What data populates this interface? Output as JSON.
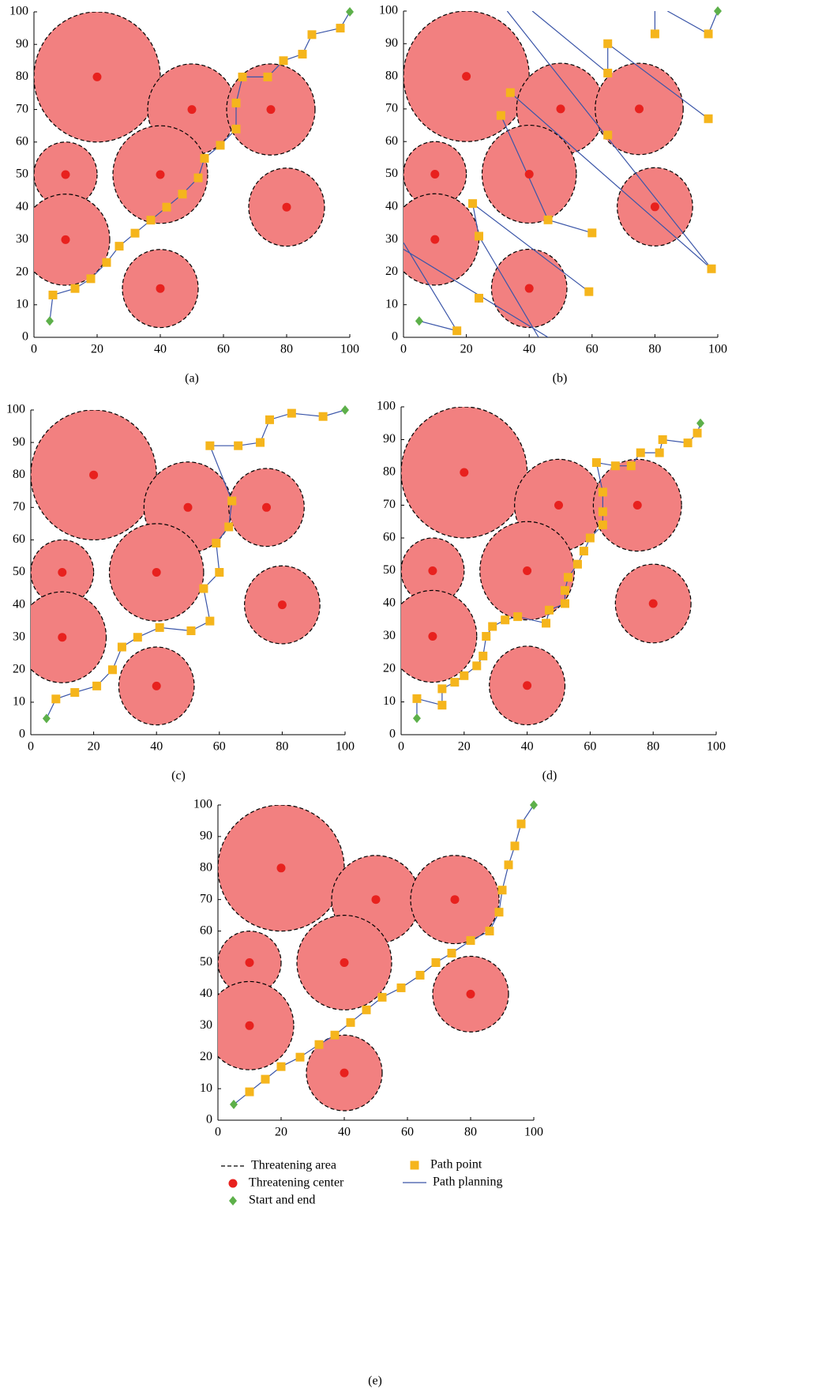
{
  "chart_data": [
    {
      "type": "scatter",
      "title": "(a)",
      "xlim": [
        0,
        100
      ],
      "ylim": [
        0,
        100
      ],
      "xticks": [
        0,
        20,
        40,
        60,
        80,
        100
      ],
      "yticks": [
        0,
        10,
        20,
        30,
        40,
        50,
        60,
        70,
        80,
        90,
        100
      ],
      "series": [
        {
          "marker": "area",
          "color": "#f28080",
          "edgecolor": "#000000",
          "x": [
            20,
            50,
            75,
            10,
            40,
            10,
            80,
            40
          ],
          "y": [
            80,
            70,
            70,
            50,
            50,
            30,
            40,
            15
          ],
          "r": [
            20,
            14,
            14,
            10,
            15,
            14,
            12,
            12
          ]
        },
        {
          "marker": "dot",
          "color": "#e8211e",
          "x": [
            20,
            50,
            75,
            10,
            40,
            10,
            80,
            40
          ],
          "y": [
            80,
            70,
            70,
            50,
            50,
            30,
            40,
            15
          ]
        },
        {
          "marker": "diamond",
          "color": "#5db04a",
          "x": [
            5,
            100
          ],
          "y": [
            5,
            100
          ]
        },
        {
          "marker": "square",
          "color": "#f5b51c",
          "x": [
            6,
            13,
            18,
            23,
            27,
            32,
            37,
            42,
            47,
            52,
            54,
            59,
            64,
            64,
            66,
            74,
            79,
            85,
            88,
            97
          ],
          "y": [
            13,
            15,
            18,
            23,
            28,
            32,
            36,
            40,
            44,
            49,
            55,
            59,
            64,
            72,
            80,
            80,
            85,
            87,
            93,
            95
          ]
        },
        {
          "marker": "line",
          "color": "#3a55a8",
          "x": [
            5,
            6,
            13,
            18,
            23,
            27,
            32,
            37,
            42,
            47,
            52,
            54,
            59,
            64,
            64,
            66,
            74,
            79,
            85,
            88,
            97,
            100
          ],
          "y": [
            5,
            13,
            15,
            18,
            23,
            28,
            32,
            36,
            40,
            44,
            49,
            55,
            59,
            64,
            72,
            80,
            80,
            85,
            87,
            93,
            95,
            100
          ]
        }
      ]
    },
    {
      "type": "scatter",
      "title": "(b)",
      "xlim": [
        0,
        100
      ],
      "ylim": [
        0,
        100
      ],
      "xticks": [
        0,
        20,
        40,
        60,
        80,
        100
      ],
      "yticks": [
        0,
        10,
        20,
        30,
        40,
        50,
        60,
        70,
        80,
        90,
        100
      ],
      "series": [
        {
          "marker": "area",
          "color": "#f28080",
          "edgecolor": "#000000",
          "x": [
            20,
            50,
            75,
            10,
            40,
            10,
            80,
            40
          ],
          "y": [
            80,
            70,
            70,
            50,
            50,
            30,
            40,
            15
          ],
          "r": [
            20,
            14,
            14,
            10,
            15,
            14,
            12,
            12
          ]
        },
        {
          "marker": "dot",
          "color": "#e8211e",
          "x": [
            20,
            50,
            75,
            10,
            40,
            10,
            80,
            40
          ],
          "y": [
            80,
            70,
            70,
            50,
            50,
            30,
            40,
            15
          ]
        },
        {
          "marker": "diamond",
          "color": "#5db04a",
          "x": [
            5,
            100
          ],
          "y": [
            5,
            100
          ]
        },
        {
          "marker": "square",
          "color": "#f5b51c",
          "x": [
            17,
            24,
            24,
            22,
            31,
            34,
            46,
            60,
            59,
            65,
            65,
            65,
            80,
            97,
            97,
            98
          ],
          "y": [
            2,
            12,
            31,
            41,
            68,
            75,
            36,
            32,
            14,
            62,
            81,
            90,
            93,
            93,
            67,
            21
          ]
        },
        {
          "marker": "line",
          "color": "#3a55a8",
          "x": [
            5,
            17,
            0,
            null,
            0,
            46,
            null,
            43,
            24,
            22,
            59,
            null,
            31,
            46,
            60,
            null,
            34,
            98,
            null,
            33,
            98,
            null,
            41,
            65,
            65,
            97,
            null,
            80,
            80,
            null,
            84,
            97,
            100
          ],
          "y": [
            5,
            2,
            29,
            null,
            27,
            0,
            null,
            0,
            31,
            41,
            14,
            null,
            68,
            36,
            32,
            null,
            75,
            21,
            null,
            100,
            21,
            null,
            100,
            81,
            90,
            67,
            null,
            100,
            93,
            null,
            100,
            93,
            100
          ]
        }
      ]
    },
    {
      "type": "scatter",
      "title": "(c)",
      "xlim": [
        0,
        100
      ],
      "ylim": [
        0,
        100
      ],
      "xticks": [
        0,
        20,
        40,
        60,
        80,
        100
      ],
      "yticks": [
        0,
        10,
        20,
        30,
        40,
        50,
        60,
        70,
        80,
        90,
        100
      ],
      "series": [
        {
          "marker": "area",
          "color": "#f28080",
          "edgecolor": "#000000",
          "x": [
            20,
            50,
            75,
            10,
            40,
            10,
            80,
            40
          ],
          "y": [
            80,
            70,
            70,
            50,
            50,
            30,
            40,
            15
          ],
          "r": [
            20,
            14,
            12,
            10,
            15,
            14,
            12,
            12
          ]
        },
        {
          "marker": "dot",
          "color": "#e8211e",
          "x": [
            20,
            50,
            75,
            10,
            40,
            10,
            80,
            40
          ],
          "y": [
            80,
            70,
            70,
            50,
            50,
            30,
            40,
            15
          ]
        },
        {
          "marker": "diamond",
          "color": "#5db04a",
          "x": [
            5,
            100
          ],
          "y": [
            5,
            100
          ]
        },
        {
          "marker": "square",
          "color": "#f5b51c",
          "x": [
            8,
            14,
            21,
            26,
            29,
            34,
            41,
            51,
            57,
            55,
            60,
            59,
            63,
            64,
            57,
            66,
            73,
            76,
            83,
            93
          ],
          "y": [
            11,
            13,
            15,
            20,
            27,
            30,
            33,
            32,
            35,
            45,
            50,
            59,
            64,
            72,
            89,
            89,
            90,
            97,
            99,
            98
          ]
        },
        {
          "marker": "line",
          "color": "#3a55a8",
          "x": [
            5,
            8,
            14,
            21,
            26,
            29,
            34,
            41,
            51,
            57,
            55,
            60,
            59,
            63,
            64,
            57,
            66,
            73,
            76,
            83,
            93,
            100
          ],
          "y": [
            5,
            11,
            13,
            15,
            20,
            27,
            30,
            33,
            32,
            35,
            45,
            50,
            59,
            64,
            72,
            89,
            89,
            90,
            97,
            99,
            98,
            100
          ]
        }
      ]
    },
    {
      "type": "scatter",
      "title": "(d)",
      "xlim": [
        0,
        100
      ],
      "ylim": [
        0,
        100
      ],
      "xticks": [
        0,
        20,
        40,
        60,
        80,
        100
      ],
      "yticks": [
        0,
        10,
        20,
        30,
        40,
        50,
        60,
        70,
        80,
        90,
        100
      ],
      "series": [
        {
          "marker": "area",
          "color": "#f28080",
          "edgecolor": "#000000",
          "x": [
            20,
            50,
            75,
            10,
            40,
            10,
            80,
            40
          ],
          "y": [
            80,
            70,
            70,
            50,
            50,
            30,
            40,
            15
          ],
          "r": [
            20,
            14,
            14,
            10,
            15,
            14,
            12,
            12
          ]
        },
        {
          "marker": "dot",
          "color": "#e8211e",
          "x": [
            20,
            50,
            75,
            10,
            40,
            10,
            80,
            40
          ],
          "y": [
            80,
            70,
            70,
            50,
            50,
            30,
            40,
            15
          ]
        },
        {
          "marker": "diamond",
          "color": "#5db04a",
          "x": [
            5,
            95
          ],
          "y": [
            5,
            95
          ]
        },
        {
          "marker": "square",
          "color": "#f5b51c",
          "x": [
            5,
            13,
            13,
            17,
            20,
            24,
            26,
            27,
            29,
            33,
            37,
            46,
            47,
            52,
            52,
            53,
            56,
            58,
            60,
            64,
            64,
            64,
            62,
            68,
            73,
            76,
            82,
            83,
            91,
            94
          ],
          "y": [
            11,
            9,
            14,
            16,
            18,
            21,
            24,
            30,
            33,
            35,
            36,
            34,
            38,
            40,
            44,
            48,
            52,
            56,
            60,
            64,
            68,
            74,
            83,
            82,
            82,
            86,
            86,
            90,
            89,
            92
          ]
        },
        {
          "marker": "line",
          "color": "#3a55a8",
          "x": [
            5,
            5,
            13,
            13,
            17,
            20,
            24,
            26,
            27,
            29,
            33,
            37,
            46,
            47,
            52,
            52,
            53,
            56,
            58,
            60,
            64,
            64,
            64,
            62,
            68,
            73,
            76,
            82,
            83,
            91,
            94,
            95
          ],
          "y": [
            5,
            11,
            9,
            14,
            16,
            18,
            21,
            24,
            30,
            33,
            35,
            36,
            34,
            38,
            40,
            44,
            48,
            52,
            56,
            60,
            64,
            68,
            74,
            83,
            82,
            82,
            86,
            86,
            90,
            89,
            92,
            95
          ]
        }
      ]
    },
    {
      "type": "scatter",
      "title": "(e)",
      "xlim": [
        0,
        100
      ],
      "ylim": [
        0,
        100
      ],
      "xticks": [
        0,
        20,
        40,
        60,
        80,
        100
      ],
      "yticks": [
        0,
        10,
        20,
        30,
        40,
        50,
        60,
        70,
        80,
        90,
        100
      ],
      "series": [
        {
          "name": "Threatening area",
          "marker": "area",
          "color": "#f28080",
          "edgecolor": "#000000",
          "x": [
            20,
            50,
            75,
            10,
            40,
            10,
            80,
            40
          ],
          "y": [
            80,
            70,
            70,
            50,
            50,
            30,
            40,
            15
          ],
          "r": [
            20,
            14,
            14,
            10,
            15,
            14,
            12,
            12
          ]
        },
        {
          "name": "Threatening center",
          "marker": "dot",
          "color": "#e8211e",
          "x": [
            20,
            50,
            75,
            10,
            40,
            10,
            80,
            40
          ],
          "y": [
            80,
            70,
            70,
            50,
            50,
            30,
            40,
            15
          ]
        },
        {
          "name": "Start and end",
          "marker": "diamond",
          "color": "#5db04a",
          "x": [
            5,
            100
          ],
          "y": [
            5,
            100
          ]
        },
        {
          "name": "Path point",
          "marker": "square",
          "color": "#f5b51c",
          "x": [
            10,
            15,
            20,
            26,
            32,
            37,
            42,
            47,
            52,
            58,
            64,
            69,
            74,
            80,
            86,
            89,
            90,
            92,
            94,
            96
          ],
          "y": [
            9,
            13,
            17,
            20,
            24,
            27,
            31,
            35,
            39,
            42,
            46,
            50,
            53,
            57,
            60,
            66,
            73,
            81,
            87,
            94
          ]
        },
        {
          "name": "Path planning",
          "marker": "line",
          "color": "#3a55a8",
          "x": [
            5,
            10,
            15,
            20,
            26,
            32,
            37,
            42,
            47,
            52,
            58,
            64,
            69,
            74,
            80,
            86,
            89,
            90,
            92,
            94,
            96,
            100
          ],
          "y": [
            5,
            9,
            13,
            17,
            20,
            24,
            27,
            31,
            35,
            39,
            42,
            46,
            50,
            53,
            57,
            60,
            66,
            73,
            81,
            87,
            94,
            100
          ]
        }
      ]
    }
  ]
}
